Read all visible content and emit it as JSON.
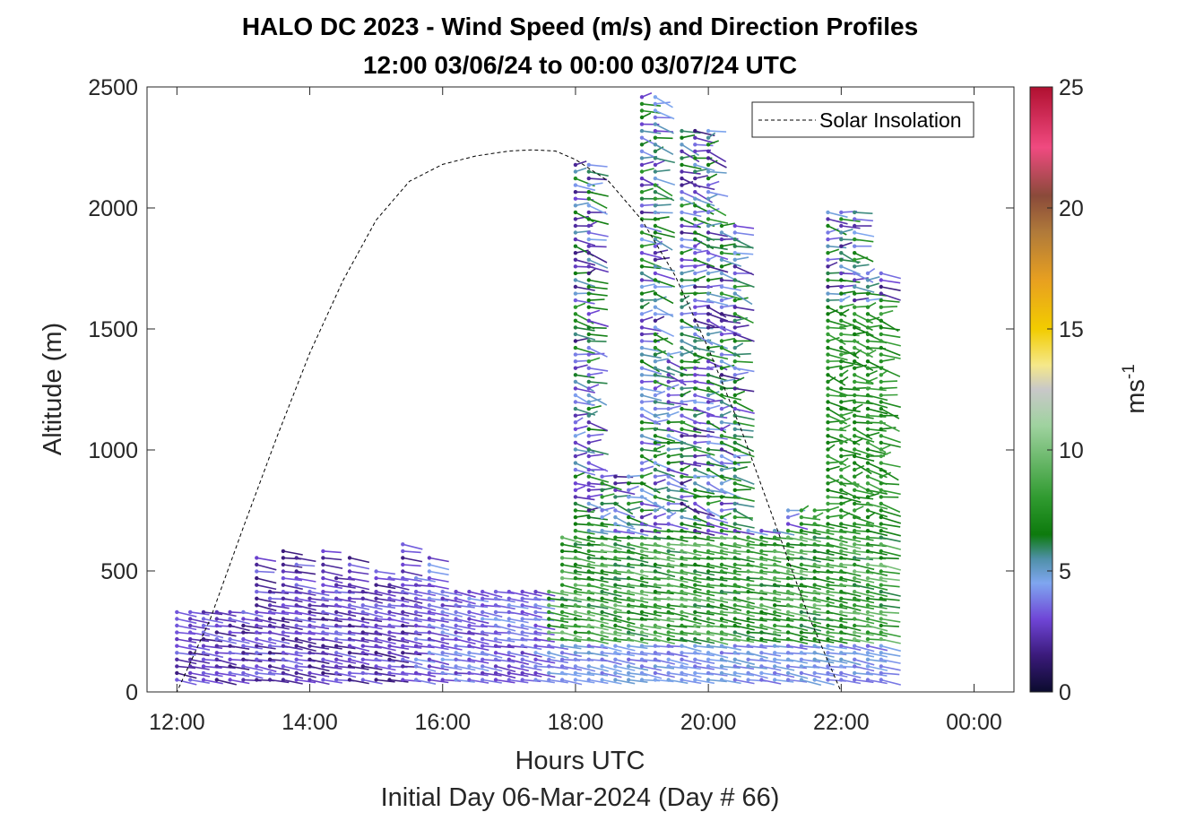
{
  "chart_data": {
    "type": "barb-profile",
    "title": "HALO DC 2023 - Wind Speed (m/s) and Direction Profiles",
    "subtitle": "12:00 03/06/24 to 00:00 03/07/24  UTC",
    "xlabel": "Hours UTC",
    "xlabel2": "Initial Day 06-Mar-2024 (Day # 66)",
    "ylabel": "Altitude (m)",
    "x_ticks": [
      "12:00",
      "14:00",
      "16:00",
      "18:00",
      "20:00",
      "22:00",
      "00:00"
    ],
    "x_tick_hours": [
      12,
      14,
      16,
      18,
      20,
      22,
      24
    ],
    "xlim": [
      11.55,
      24.6
    ],
    "ylim": [
      0,
      2500
    ],
    "y_ticks": [
      0,
      500,
      1000,
      1500,
      2000,
      2500
    ],
    "colorbar": {
      "label": "ms-1",
      "label_main": "ms",
      "label_sup": "-1",
      "ticks": [
        0,
        5,
        10,
        15,
        20,
        25
      ],
      "range": [
        0,
        25
      ],
      "stops": [
        {
          "v": 0,
          "c": "#0b0b2e"
        },
        {
          "v": 1.5,
          "c": "#3a1a7a"
        },
        {
          "v": 3,
          "c": "#6f45d6"
        },
        {
          "v": 4.5,
          "c": "#7fa6f0"
        },
        {
          "v": 5.5,
          "c": "#4f90a8"
        },
        {
          "v": 6.5,
          "c": "#0d7a0d"
        },
        {
          "v": 8,
          "c": "#2f9a2f"
        },
        {
          "v": 11,
          "c": "#9fd29f"
        },
        {
          "v": 12.5,
          "c": "#c8c8c8"
        },
        {
          "v": 13.5,
          "c": "#f5e88a"
        },
        {
          "v": 15,
          "c": "#f2cc00"
        },
        {
          "v": 17,
          "c": "#e8a020"
        },
        {
          "v": 19,
          "c": "#b07a3a"
        },
        {
          "v": 20.5,
          "c": "#8a4a3a"
        },
        {
          "v": 22.5,
          "c": "#f04a80"
        },
        {
          "v": 25,
          "c": "#b01030"
        }
      ]
    },
    "legend": {
      "entries": [
        "Solar Insolation"
      ],
      "placement": "top-right"
    },
    "solar_insolation": {
      "style": "dashed",
      "color": "#000000",
      "x_hours": [
        11.5,
        12.0,
        12.5,
        13.0,
        13.5,
        14.0,
        14.5,
        15.0,
        15.5,
        16.0,
        16.5,
        17.0,
        17.35,
        17.7,
        18.0,
        18.5,
        19.0,
        19.5,
        20.0,
        20.5,
        21.0,
        21.5,
        22.0,
        22.4,
        22.8,
        23.0,
        24.5
      ],
      "y_m": [
        0,
        0,
        300,
        680,
        1050,
        1400,
        1700,
        1950,
        2110,
        2180,
        2215,
        2235,
        2240,
        2235,
        2200,
        2110,
        1950,
        1720,
        1420,
        1080,
        700,
        320,
        0,
        0,
        0,
        0,
        0
      ]
    },
    "profile_time_range_hours": [
      12.0,
      22.75
    ],
    "profile_interval_hours": 0.2,
    "wind_speed_range_ms": [
      0.5,
      21
    ]
  }
}
